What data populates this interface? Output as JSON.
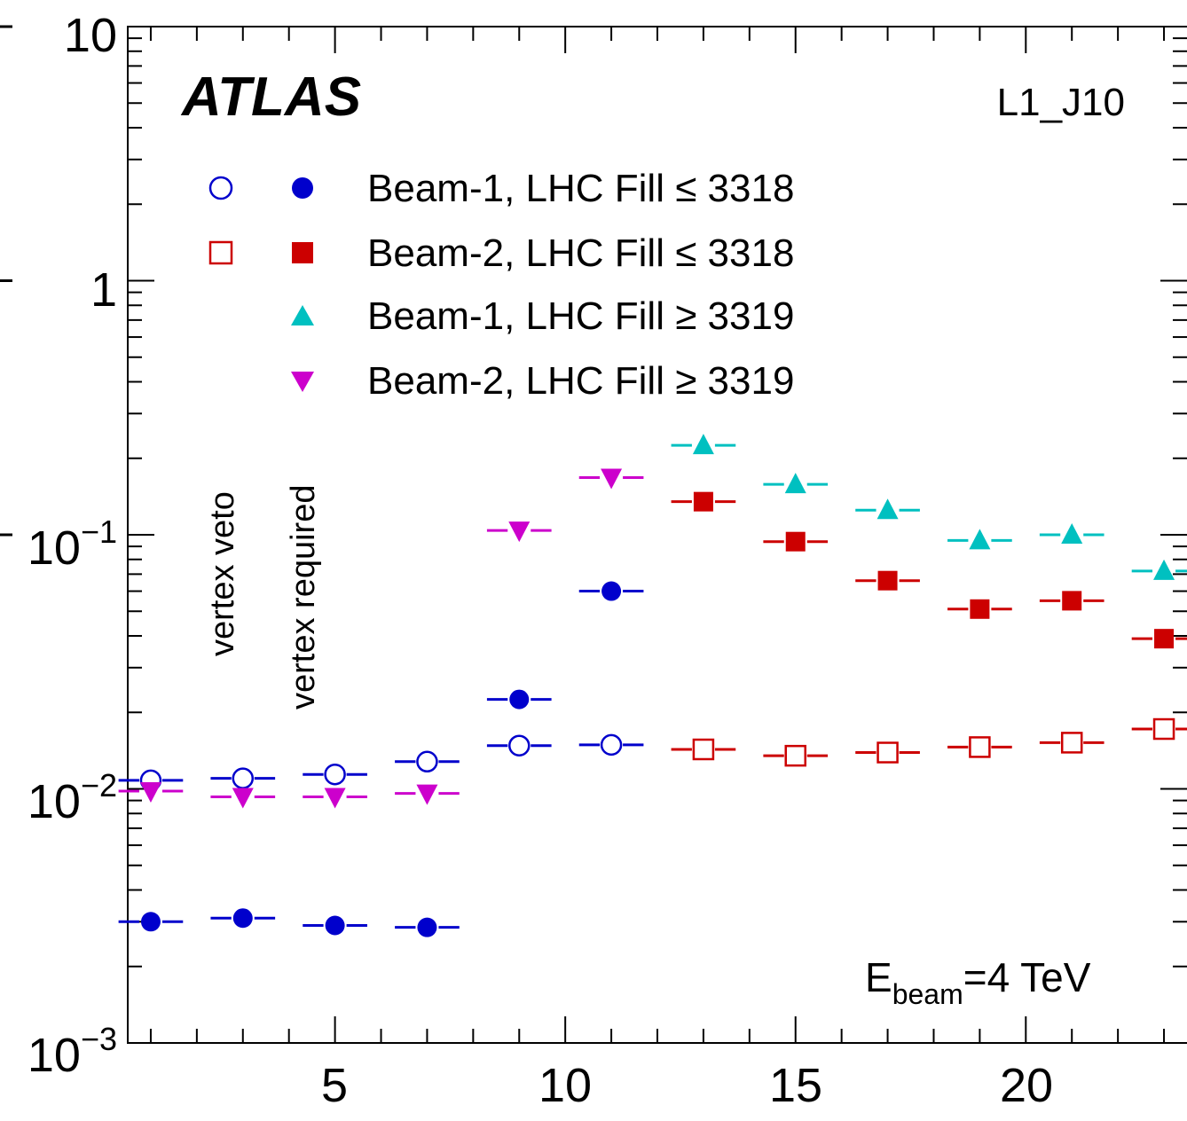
{
  "chart_data": {
    "type": "scatter",
    "title": "",
    "xlabel": "",
    "ylabel": "",
    "xlim": [
      0.5,
      23.5
    ],
    "ylim": [
      0.001,
      10
    ],
    "yscale": "log",
    "grid": false,
    "x_tick_labels": [
      "5",
      "10",
      "15",
      "20"
    ],
    "y_tick_labels": [
      {
        "mantissa": "10",
        "exp": ""
      },
      {
        "mantissa": "1",
        "exp": ""
      },
      {
        "mantissa": "10",
        "exp": "−1"
      },
      {
        "mantissa": "10",
        "exp": "−2"
      },
      {
        "mantissa": "10",
        "exp": "−3"
      }
    ],
    "annotations": {
      "experiment": "ATLAS",
      "trigger": "L1_J10",
      "ebeam_prefix": "E",
      "ebeam_sub": "beam",
      "ebeam_suffix": "=4 TeV",
      "column_veto": "vertex veto",
      "column_required": "vertex required"
    },
    "legend": {
      "placement": "top-left",
      "entries": [
        {
          "label": "Beam-1, LHC Fill ≤ 3318",
          "markers": [
            "open-circle",
            "filled-circle"
          ],
          "color": "#0000cc"
        },
        {
          "label": "Beam-2, LHC Fill ≤ 3318",
          "markers": [
            "open-square",
            "filled-square"
          ],
          "color": "#cc0000"
        },
        {
          "label": "Beam-1, LHC Fill ≥ 3319",
          "markers": [
            "triangle-up"
          ],
          "color": "#00c0c0"
        },
        {
          "label": "Beam-2, LHC Fill ≥ 3319",
          "markers": [
            "triangle-down"
          ],
          "color": "#cc00cc"
        }
      ]
    },
    "series": [
      {
        "marker": "open-circle",
        "color": "#0000cc",
        "x": [
          1,
          3,
          5,
          7,
          9,
          11
        ],
        "y": [
          0.0108,
          0.011,
          0.0114,
          0.0128,
          0.0148,
          0.0149
        ]
      },
      {
        "marker": "filled-circle",
        "color": "#0000cc",
        "x": [
          1,
          3,
          5,
          7,
          9,
          11
        ],
        "y": [
          0.003,
          0.0031,
          0.0029,
          0.00285,
          0.0225,
          0.06
        ]
      },
      {
        "marker": "open-square",
        "color": "#cc0000",
        "x": [
          13,
          15,
          17,
          19,
          21,
          23
        ],
        "y": [
          0.0143,
          0.0135,
          0.0139,
          0.0146,
          0.0152,
          0.0172
        ]
      },
      {
        "marker": "filled-square",
        "color": "#cc0000",
        "x": [
          13,
          15,
          17,
          19,
          21,
          23
        ],
        "y": [
          0.135,
          0.094,
          0.066,
          0.051,
          0.055,
          0.039
        ]
      },
      {
        "marker": "triangle-up",
        "color": "#00c0c0",
        "x": [
          13,
          15,
          17,
          19,
          21,
          23
        ],
        "y": [
          0.225,
          0.158,
          0.125,
          0.095,
          0.1,
          0.072
        ]
      },
      {
        "marker": "triangle-down",
        "color": "#cc00cc",
        "x": [
          1,
          3,
          5,
          7,
          9,
          11
        ],
        "y": [
          0.0098,
          0.0093,
          0.0093,
          0.0096,
          0.104,
          0.168
        ]
      }
    ]
  }
}
